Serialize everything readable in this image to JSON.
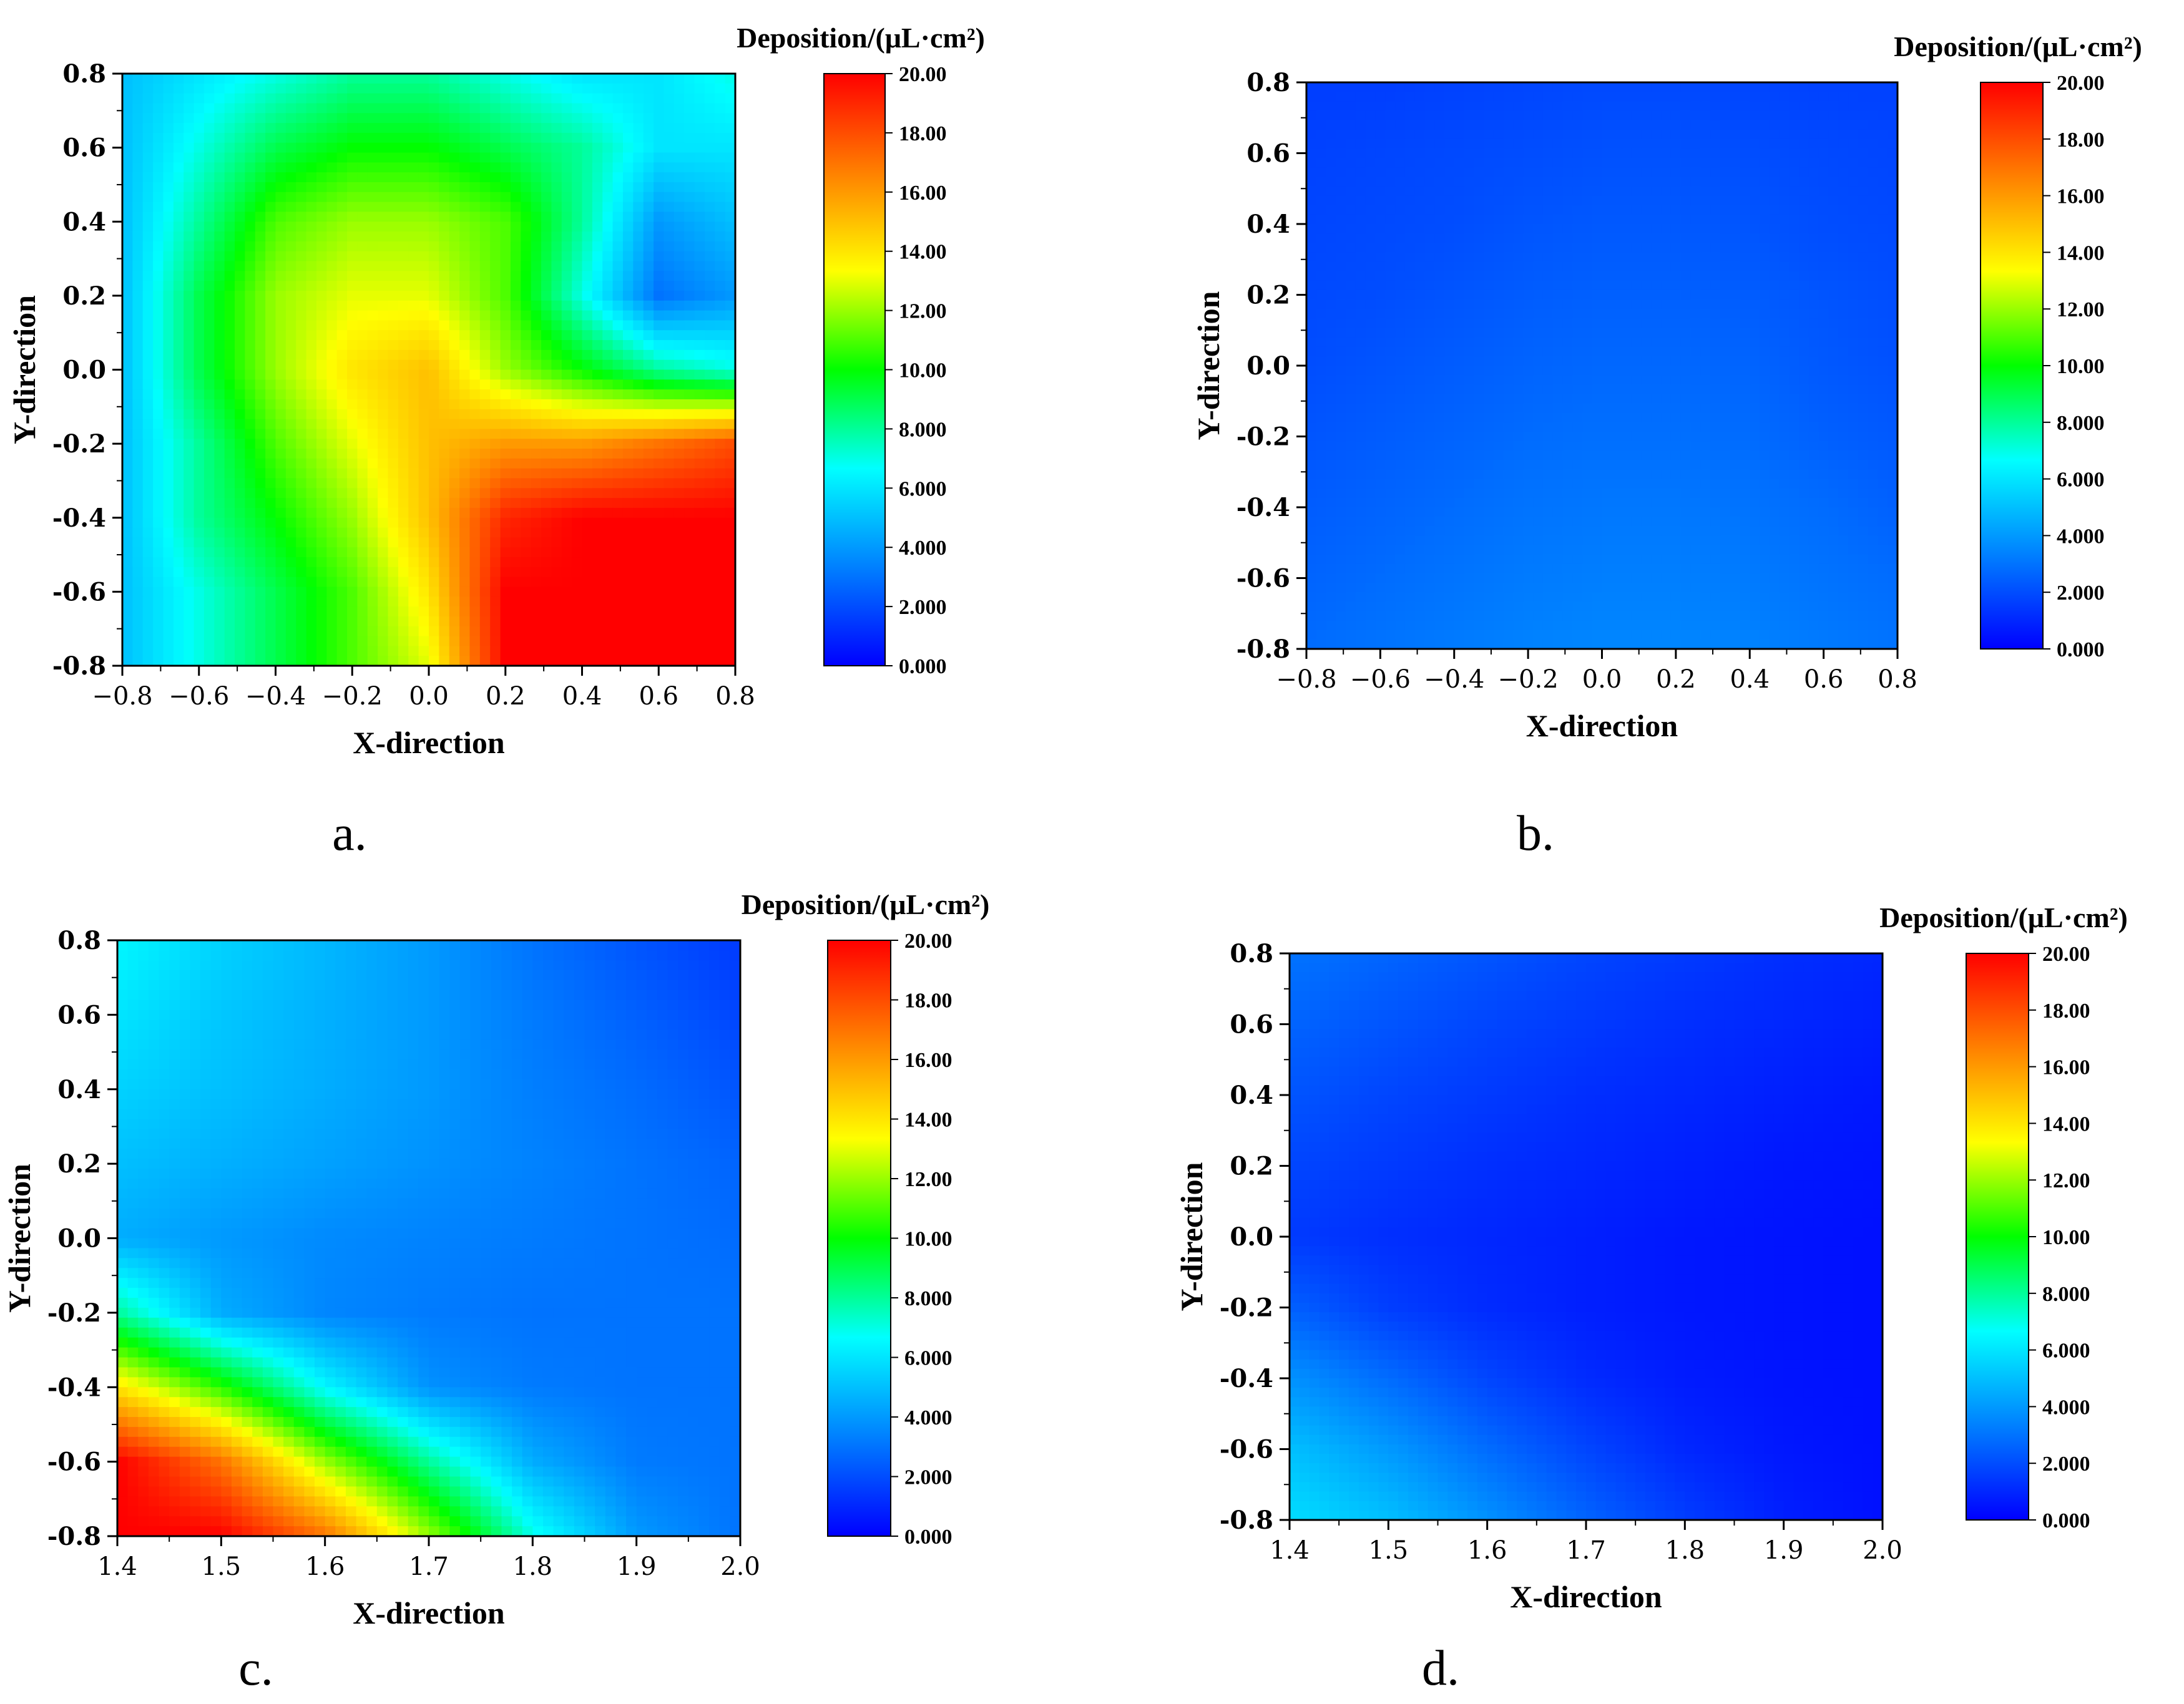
{
  "colorscale": [
    "#0000ff",
    "#0080ff",
    "#00ffff",
    "#00ff00",
    "#ffff00",
    "#ff8000",
    "#ff0000"
  ],
  "chart_data": [
    {
      "type": "heatmap",
      "panel_label": "a.",
      "xlabel": "X-direction",
      "ylabel": "Y-direction",
      "colorbar_title": "Deposition/(μL·cm²)",
      "xlim": [
        -0.8,
        0.8
      ],
      "ylim": [
        -0.8,
        0.8
      ],
      "x_ticks": [
        "−0.8",
        "−0.6",
        "−0.4",
        "−0.2",
        "0.0",
        "0.2",
        "0.4",
        "0.6",
        "0.8"
      ],
      "y_ticks": [
        "0.8",
        "0.6",
        "0.4",
        "0.2",
        "0.0",
        "-0.2",
        "-0.4",
        "-0.6",
        "-0.8"
      ],
      "zlim": [
        0,
        20
      ],
      "colorbar_ticks": [
        "20.00",
        "18.00",
        "16.00",
        "14.00",
        "12.00",
        "10.00",
        "8.000",
        "6.000",
        "4.000",
        "2.000",
        "0.000"
      ],
      "x": [
        -0.8,
        -0.6,
        -0.4,
        -0.2,
        0.0,
        0.2,
        0.4,
        0.6,
        0.8
      ],
      "y": [
        0.8,
        0.6,
        0.4,
        0.2,
        0.0,
        -0.2,
        -0.4,
        -0.6,
        -0.8
      ],
      "values": [
        [
          5,
          6,
          7,
          8,
          8,
          7,
          6,
          6,
          7
        ],
        [
          5,
          7,
          9,
          10,
          10,
          9,
          8,
          6,
          6
        ],
        [
          5,
          8,
          11,
          12,
          12,
          11,
          8,
          4,
          5
        ],
        [
          5,
          9,
          12,
          13,
          13,
          11,
          7,
          3,
          4
        ],
        [
          5,
          9,
          12,
          14,
          15,
          12,
          10,
          8,
          7
        ],
        [
          5,
          8,
          11,
          13,
          15,
          16,
          16,
          17,
          18
        ],
        [
          5,
          8,
          10,
          12,
          15,
          19,
          20,
          20,
          20
        ],
        [
          5,
          7,
          9,
          11,
          14,
          20,
          20,
          20,
          20
        ],
        [
          5,
          7,
          9,
          11,
          13,
          20,
          20,
          20,
          20
        ]
      ]
    },
    {
      "type": "heatmap",
      "panel_label": "b.",
      "xlabel": "X-direction",
      "ylabel": "Y-direction",
      "colorbar_title": "Deposition/(μL·cm²)",
      "xlim": [
        -0.8,
        0.8
      ],
      "ylim": [
        -0.8,
        0.8
      ],
      "x_ticks": [
        "−0.8",
        "−0.6",
        "−0.4",
        "−0.2",
        "0.0",
        "0.2",
        "0.4",
        "0.6",
        "0.8"
      ],
      "y_ticks": [
        "0.8",
        "0.6",
        "0.4",
        "0.2",
        "0.0",
        "-0.2",
        "-0.4",
        "-0.6",
        "-0.8"
      ],
      "zlim": [
        0,
        20
      ],
      "colorbar_ticks": [
        "20.00",
        "18.00",
        "16.00",
        "14.00",
        "12.00",
        "10.00",
        "8.000",
        "6.000",
        "4.000",
        "2.000",
        "0.000"
      ],
      "x": [
        -0.8,
        -0.6,
        -0.4,
        -0.2,
        0.0,
        0.2,
        0.4,
        0.6,
        0.8
      ],
      "y": [
        0.8,
        0.6,
        0.4,
        0.2,
        0.0,
        -0.2,
        -0.4,
        -0.6,
        -0.8
      ],
      "values": [
        [
          1.6,
          1.6,
          1.7,
          1.8,
          1.9,
          1.9,
          1.8,
          1.7,
          1.7
        ],
        [
          1.7,
          1.8,
          1.9,
          2.0,
          2.1,
          2.1,
          2.0,
          1.9,
          1.8
        ],
        [
          1.8,
          1.9,
          2.0,
          2.2,
          2.3,
          2.3,
          2.2,
          2.0,
          1.9
        ],
        [
          1.9,
          2.0,
          2.2,
          2.4,
          2.5,
          2.5,
          2.4,
          2.2,
          2.0
        ],
        [
          2.0,
          2.2,
          2.4,
          2.6,
          2.7,
          2.7,
          2.6,
          2.3,
          2.1
        ],
        [
          2.2,
          2.4,
          2.6,
          2.8,
          2.9,
          2.9,
          2.8,
          2.5,
          2.3
        ],
        [
          2.4,
          2.6,
          2.8,
          3.0,
          3.1,
          3.1,
          3.0,
          2.8,
          2.5
        ],
        [
          2.6,
          2.8,
          3.0,
          3.2,
          3.3,
          3.3,
          3.2,
          3.0,
          2.8
        ],
        [
          2.8,
          3.0,
          3.2,
          3.4,
          3.5,
          3.5,
          3.4,
          3.2,
          3.0
        ]
      ]
    },
    {
      "type": "heatmap",
      "panel_label": "c.",
      "xlabel": "X-direction",
      "ylabel": "Y-direction",
      "colorbar_title": "Deposition/(μL·cm²)",
      "xlim": [
        1.4,
        2.0
      ],
      "ylim": [
        -0.8,
        0.8
      ],
      "x_ticks": [
        "1.4",
        "1.5",
        "1.6",
        "1.7",
        "1.8",
        "1.9",
        "2.0"
      ],
      "y_ticks": [
        "0.8",
        "0.6",
        "0.4",
        "0.2",
        "0.0",
        "-0.2",
        "-0.4",
        "-0.6",
        "-0.8"
      ],
      "zlim": [
        0,
        20
      ],
      "colorbar_ticks": [
        "20.00",
        "18.00",
        "16.00",
        "14.00",
        "12.00",
        "10.00",
        "8.000",
        "6.000",
        "4.000",
        "2.000",
        "0.000"
      ],
      "x": [
        1.4,
        1.5,
        1.6,
        1.7,
        1.8,
        1.9,
        2.0
      ],
      "y": [
        0.8,
        0.6,
        0.4,
        0.2,
        0.0,
        -0.2,
        -0.4,
        -0.6,
        -0.8
      ],
      "values": [
        [
          6.5,
          5.5,
          4.8,
          4.0,
          3.0,
          2.2,
          1.5
        ],
        [
          6.0,
          5.2,
          4.6,
          4.0,
          3.2,
          2.5,
          1.8
        ],
        [
          5.5,
          5.0,
          4.5,
          4.0,
          3.3,
          2.8,
          2.2
        ],
        [
          5.0,
          4.6,
          4.2,
          3.8,
          3.4,
          3.0,
          2.6
        ],
        [
          4.5,
          4.0,
          3.6,
          3.4,
          3.2,
          3.0,
          2.8
        ],
        [
          8.0,
          4.5,
          3.5,
          3.2,
          3.0,
          3.0,
          3.0
        ],
        [
          14.0,
          10.5,
          6.5,
          3.8,
          3.2,
          3.0,
          3.0
        ],
        [
          20.0,
          17.0,
          12.0,
          8.0,
          4.5,
          3.2,
          3.0
        ],
        [
          20.0,
          20.0,
          17.0,
          12.0,
          7.0,
          4.0,
          3.0
        ]
      ]
    },
    {
      "type": "heatmap",
      "panel_label": "d.",
      "xlabel": "X-direction",
      "ylabel": "Y-direction",
      "colorbar_title": "Deposition/(μL·cm²)",
      "xlim": [
        1.4,
        2.0
      ],
      "ylim": [
        -0.8,
        0.8
      ],
      "x_ticks": [
        "1.4",
        "1.5",
        "1.6",
        "1.7",
        "1.8",
        "1.9",
        "2.0"
      ],
      "y_ticks": [
        "0.8",
        "0.6",
        "0.4",
        "0.2",
        "0.0",
        "-0.2",
        "-0.4",
        "-0.6",
        "-0.8"
      ],
      "zlim": [
        0,
        20
      ],
      "colorbar_ticks": [
        "20.00",
        "18.00",
        "16.00",
        "14.00",
        "12.00",
        "10.00",
        "8.000",
        "6.000",
        "4.000",
        "2.000",
        "0.000"
      ],
      "x": [
        1.4,
        1.5,
        1.6,
        1.7,
        1.8,
        1.9,
        2.0
      ],
      "y": [
        0.8,
        0.6,
        0.4,
        0.2,
        0.0,
        -0.2,
        -0.4,
        -0.6,
        -0.8
      ],
      "values": [
        [
          3.0,
          2.6,
          2.2,
          1.8,
          1.5,
          1.2,
          1.0
        ],
        [
          2.6,
          2.2,
          1.8,
          1.5,
          1.2,
          1.0,
          0.8
        ],
        [
          2.2,
          1.8,
          1.5,
          1.2,
          1.0,
          0.8,
          0.6
        ],
        [
          1.8,
          1.5,
          1.2,
          1.0,
          0.8,
          0.6,
          0.5
        ],
        [
          1.5,
          1.2,
          1.0,
          0.8,
          0.6,
          0.5,
          0.4
        ],
        [
          2.5,
          1.6,
          1.1,
          0.8,
          0.6,
          0.5,
          0.4
        ],
        [
          3.8,
          2.8,
          1.8,
          1.1,
          0.7,
          0.5,
          0.4
        ],
        [
          5.0,
          4.0,
          2.8,
          1.8,
          1.0,
          0.6,
          0.4
        ],
        [
          5.8,
          5.0,
          3.8,
          2.6,
          1.6,
          0.8,
          0.4
        ]
      ]
    }
  ]
}
